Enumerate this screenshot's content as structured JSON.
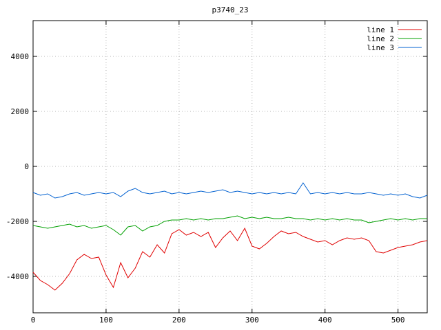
{
  "chart_data": {
    "type": "line",
    "title": "p3740_23",
    "xlabel": "",
    "ylabel": "",
    "xlim": [
      0,
      540
    ],
    "ylim": [
      -5325,
      5300
    ],
    "xticks": [
      0,
      100,
      200,
      300,
      400,
      500
    ],
    "yticks": [
      -4000,
      -2000,
      0,
      2000,
      4000
    ],
    "grid": "dotted",
    "grid_color": "#b4b4b4",
    "border_color": "#000000",
    "legend_position": "top-right-inside",
    "x_start": 0,
    "x_step": 10,
    "series": [
      {
        "name": "line 1",
        "color": "#e00000",
        "values": [
          -3850,
          -4150,
          -4300,
          -4500,
          -4250,
          -3900,
          -3400,
          -3200,
          -3350,
          -3300,
          -3950,
          -4400,
          -3500,
          -4050,
          -3700,
          -3100,
          -3300,
          -2850,
          -3150,
          -2450,
          -2300,
          -2500,
          -2400,
          -2550,
          -2400,
          -2950,
          -2600,
          -2350,
          -2700,
          -2250,
          -2900,
          -3000,
          -2800,
          -2550,
          -2350,
          -2450,
          -2400,
          -2550,
          -2650,
          -2750,
          -2700,
          -2850,
          -2700,
          -2600,
          -2650,
          -2600,
          -2700,
          -3100,
          -3150,
          -3050,
          -2950,
          -2900,
          -2850,
          -2750,
          -2700
        ]
      },
      {
        "name": "line 2",
        "color": "#00a000",
        "values": [
          -2150,
          -2200,
          -2250,
          -2200,
          -2150,
          -2100,
          -2200,
          -2150,
          -2250,
          -2200,
          -2150,
          -2300,
          -2500,
          -2200,
          -2150,
          -2350,
          -2200,
          -2150,
          -2000,
          -1950,
          -1950,
          -1900,
          -1950,
          -1900,
          -1950,
          -1900,
          -1900,
          -1850,
          -1800,
          -1900,
          -1850,
          -1900,
          -1850,
          -1900,
          -1900,
          -1850,
          -1900,
          -1900,
          -1950,
          -1900,
          -1950,
          -1900,
          -1950,
          -1900,
          -1950,
          -1950,
          -2050,
          -2000,
          -1950,
          -1900,
          -1950,
          -1900,
          -1950,
          -1900,
          -1900
        ]
      },
      {
        "name": "line 3",
        "color": "#0060d0",
        "values": [
          -950,
          -1050,
          -1000,
          -1150,
          -1100,
          -1000,
          -950,
          -1050,
          -1000,
          -950,
          -1000,
          -950,
          -1100,
          -900,
          -800,
          -950,
          -1000,
          -950,
          -900,
          -1000,
          -950,
          -1000,
          -950,
          -900,
          -950,
          -900,
          -850,
          -950,
          -900,
          -950,
          -1000,
          -950,
          -1000,
          -950,
          -1000,
          -950,
          -1000,
          -600,
          -1000,
          -950,
          -1000,
          -950,
          -1000,
          -950,
          -1000,
          -1000,
          -950,
          -1000,
          -1050,
          -1000,
          -1050,
          -1000,
          -1100,
          -1150,
          -1050
        ]
      }
    ]
  }
}
